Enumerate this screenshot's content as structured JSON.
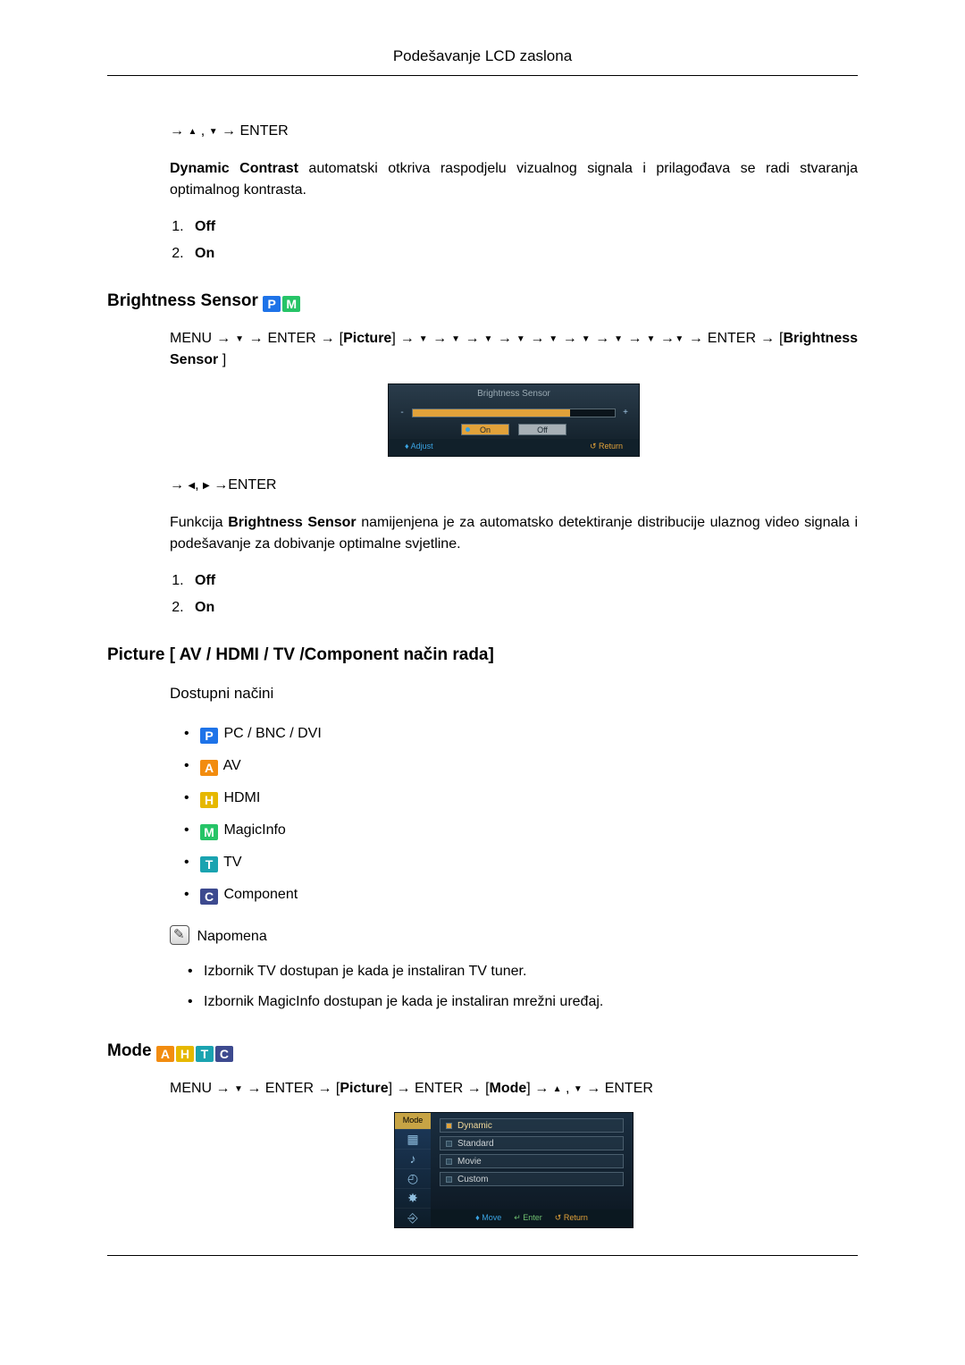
{
  "header": {
    "title": "Podešavanje LCD zaslona"
  },
  "dynamic_contrast": {
    "nav_pre": "→ ",
    "nav_mid": " , ",
    "nav_post": " → ENTER",
    "bold": "Dynamic Contrast",
    "desc": " automatski otkriva raspodjelu vizualnog signala i prilagođava se radi stvaranja optimalnog kontrasta.",
    "opts": [
      "Off",
      "On"
    ]
  },
  "brightness_sensor": {
    "heading": "Brightness Sensor ",
    "nav1_a": "MENU → ",
    "nav1_b": " → ENTER → [",
    "nav1_picture": "Picture",
    "nav1_c": "] → ",
    "nav1_enter": " → ENTER → [",
    "nav1_bs": "Brightness Sensor ",
    "nav1_d": "]",
    "osd": {
      "title": "Brightness Sensor",
      "fill_pct": 78,
      "on": "On",
      "off": "Off",
      "adjust": "♦ Adjust",
      "return": "↺ Return",
      "colors": {
        "fill": "#e2a23a",
        "accent": "#3aa3e2"
      }
    },
    "nav2_a": "→ ",
    "nav2_b": " →ENTER",
    "func_a": "Funkcija ",
    "func_bold": "Brightness Sensor",
    "func_b": " namijenjena je za automatsko detektiranje distribucije ulaznog video signala i podešavanje za dobivanje optimalne svjetline.",
    "opts": [
      "Off",
      "On"
    ]
  },
  "picture_modes": {
    "heading": "Picture [ AV / HDMI / TV /Component način rada]",
    "sub": "Dostupni načini",
    "items": [
      {
        "badge": "P",
        "cls": "badge-P",
        "label": " PC / BNC / DVI"
      },
      {
        "badge": "A",
        "cls": "badge-A",
        "label": " AV"
      },
      {
        "badge": "H",
        "cls": "badge-H",
        "label": " HDMI"
      },
      {
        "badge": "M",
        "cls": "badge-M",
        "label": " MagicInfo"
      },
      {
        "badge": "T",
        "cls": "badge-T",
        "label": " TV"
      },
      {
        "badge": "C",
        "cls": "badge-C",
        "label": " Component"
      }
    ],
    "note_label": " Napomena",
    "notes": [
      "Izbornik TV dostupan je kada je instaliran TV tuner.",
      "Izbornik MagicInfo dostupan je kada je instaliran mrežni uređaj."
    ]
  },
  "mode": {
    "heading": "Mode ",
    "nav_a": "MENU → ",
    "nav_b": " → ENTER → [",
    "nav_picture": "Picture",
    "nav_c": "] → ENTER → [",
    "nav_mode": "Mode",
    "nav_d": "] → ",
    "nav_e": " , ",
    "nav_f": " → ENTER",
    "osd": {
      "tab": "Mode",
      "options": [
        "Dynamic",
        "Standard",
        "Movie",
        "Custom"
      ],
      "selected": 0,
      "move": "♦ Move",
      "enter": "↵ Enter",
      "return": "↺ Return"
    }
  }
}
